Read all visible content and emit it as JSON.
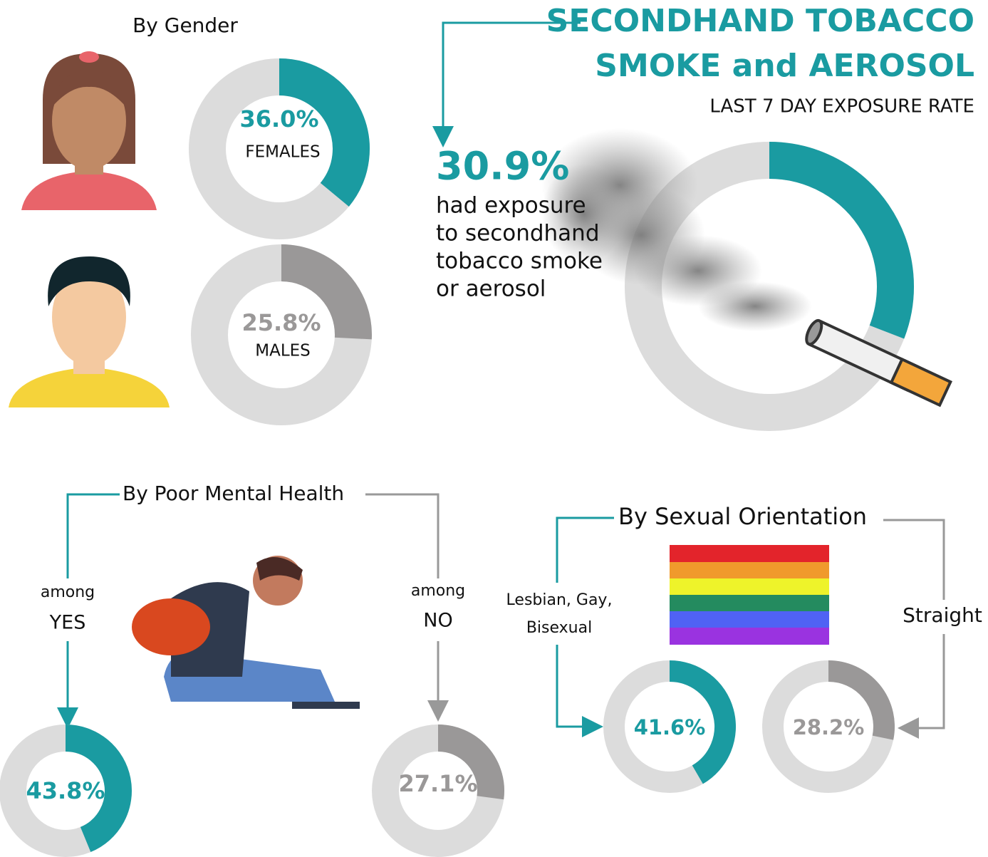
{
  "scale": [
    0,
    100
  ],
  "track_color": "#dcdcdc",
  "header": {
    "title_lines": [
      "SECONDHAND TOBACCO",
      "SMOKE and AEROSOL"
    ],
    "subtitle": "LAST 7 DAY EXPOSURE RATE"
  },
  "overall": {
    "value": 30.9,
    "value_label": "30.9%",
    "color": "#1a9ba1",
    "text_lines": [
      "had exposure",
      "to secondhand",
      "tobacco smoke",
      "or aerosol"
    ]
  },
  "gender": {
    "heading": "By Gender",
    "groups": [
      {
        "name": "FEMALES",
        "value": 36.0,
        "value_label": "36.0%",
        "color": "#1a9ba1"
      },
      {
        "name": "MALES",
        "value": 25.8,
        "value_label": "25.8%",
        "color": "#9a9898"
      }
    ]
  },
  "mental_health": {
    "heading": "By Poor Mental Health",
    "groups": [
      {
        "prefix": "among",
        "name": "YES",
        "value": 43.8,
        "value_label": "43.8%",
        "color": "#1a9ba1"
      },
      {
        "prefix": "among",
        "name": "NO",
        "value": 27.1,
        "value_label": "27.1%",
        "color": "#9a9898"
      }
    ]
  },
  "sexual_orientation": {
    "heading": "By Sexual Orientation",
    "groups": [
      {
        "name_lines": [
          "Lesbian, Gay,",
          "Bisexual"
        ],
        "value": 41.6,
        "value_label": "41.6%",
        "color": "#1a9ba1"
      },
      {
        "name": "Straight",
        "value": 28.2,
        "value_label": "28.2%",
        "color": "#9a9898"
      }
    ]
  }
}
